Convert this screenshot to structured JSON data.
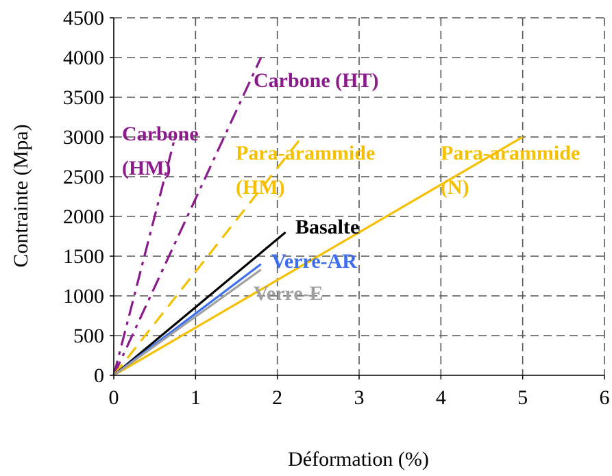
{
  "chart_data": {
    "type": "line",
    "xlabel": "Déformation (%)",
    "ylabel": "Contrainte (Mpa)",
    "xlim": [
      0,
      6
    ],
    "ylim": [
      0,
      4500
    ],
    "xticks": [
      "0",
      "1",
      "2",
      "3",
      "4",
      "5",
      "6"
    ],
    "yticks": [
      "0",
      "500",
      "1000",
      "1500",
      "2000",
      "2500",
      "3000",
      "3500",
      "4000",
      "4500"
    ],
    "grid": true,
    "series": [
      {
        "name": "Carbone (HM)",
        "labelLines": [
          "Carbone",
          "(HM)"
        ],
        "color": "#8B1A8B",
        "dash": "dashdot",
        "x": [
          0,
          0.75
        ],
        "y": [
          0,
          3000
        ]
      },
      {
        "name": "Carbone (HT)",
        "labelLines": [
          "Carbone (HT)"
        ],
        "color": "#8B1A8B",
        "dash": "dashdot",
        "x": [
          0,
          1.8
        ],
        "y": [
          0,
          4000
        ]
      },
      {
        "name": "Para-arammide (HM)",
        "labelLines": [
          "Para-arammide",
          "(HM)"
        ],
        "color": "#F5C000",
        "dash": "dashed",
        "x": [
          0,
          2.3
        ],
        "y": [
          0,
          3000
        ]
      },
      {
        "name": "Para-arammide (N)",
        "labelLines": [
          "Para-arammide",
          "(N)"
        ],
        "color": "#F5C000",
        "dash": "solid",
        "x": [
          0,
          5.0
        ],
        "y": [
          0,
          3000
        ]
      },
      {
        "name": "Basalte",
        "labelLines": [
          "Basalte"
        ],
        "color": "#000000",
        "dash": "solid",
        "x": [
          0,
          2.1
        ],
        "y": [
          0,
          1800
        ]
      },
      {
        "name": "Verre-AR",
        "labelLines": [
          "Verre-AR"
        ],
        "color": "#3C6EF0",
        "dash": "solid",
        "x": [
          0,
          1.8
        ],
        "y": [
          0,
          1400
        ]
      },
      {
        "name": "Verre-E",
        "labelLines": [
          "Verre-E"
        ],
        "color": "#A0A0A0",
        "dash": "solid",
        "x": [
          0,
          1.8
        ],
        "y": [
          0,
          1330
        ]
      }
    ]
  }
}
